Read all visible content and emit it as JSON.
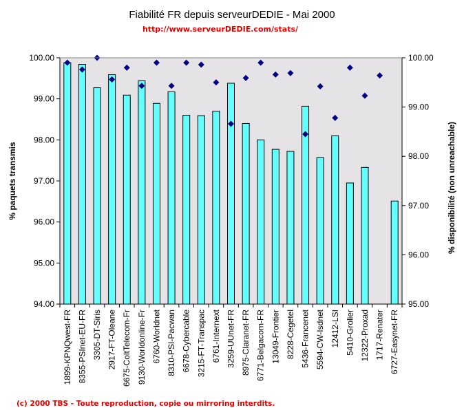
{
  "chart_data": {
    "type": "bar",
    "title": "Fiabilité FR depuis serveurDEDIE - Mai 2000",
    "subtitle": "http://www.serveurDEDIE.com/stats/",
    "footer": "(c) 2000 TBS - Toute reproduction, copie ou mirroring interdits.",
    "ylabel": "% paquets transmis",
    "y2label": "% disponibilité (non unreachable)",
    "ylim": [
      94,
      100
    ],
    "y2lim": [
      95,
      100
    ],
    "yticks": [
      "94.00",
      "95.00",
      "96.00",
      "97.00",
      "98.00",
      "99.00",
      "100.00"
    ],
    "y2ticks": [
      "95.00",
      "96.00",
      "97.00",
      "98.00",
      "99.00",
      "100.00"
    ],
    "grid": false,
    "legend": "none",
    "categories": [
      "1899-KPNQwest-FR",
      "8355-PSInet-EU-FR",
      "3305-DT-Siris",
      "2917-FT-Oleane",
      "6675-ColtTelecom-Fr",
      "9130-Worldonline-Fr",
      "6760-Worldnet",
      "8310-PSI-Pacwan",
      "6678-Cybercable",
      "3215-FT-Transpac",
      "6761-Internext",
      "3259-UUnet-FR",
      "8975-Claranet-FR",
      "6771-Belgacom-FR",
      "13049-Frontier",
      "8228-Cegetel",
      "5436-Francenet",
      "5594-CW-Isdnet",
      "12412-LSI",
      "5410-Grolier",
      "12322-Proxad",
      "1717-Renater",
      "6727-Easynet-FR"
    ],
    "series": [
      {
        "name": "% paquets transmis",
        "type": "bar",
        "axis": "left",
        "color": "#66ffff",
        "values": [
          99.88,
          99.84,
          99.27,
          99.59,
          99.09,
          99.44,
          98.89,
          99.17,
          98.6,
          98.59,
          98.7,
          99.38,
          98.4,
          98.0,
          97.77,
          97.72,
          98.82,
          97.57,
          98.1,
          96.95,
          97.33,
          null,
          96.51
        ]
      },
      {
        "name": "% disponibilité (non unreachable)",
        "type": "scatter",
        "marker": "diamond",
        "axis": "right",
        "color": "#000080",
        "values": [
          99.9,
          99.76,
          100.0,
          99.56,
          99.8,
          99.43,
          99.9,
          99.43,
          99.9,
          99.86,
          99.5,
          98.66,
          99.59,
          99.9,
          99.66,
          99.69,
          98.45,
          99.42,
          98.78,
          99.8,
          99.23,
          99.64,
          null
        ]
      }
    ]
  },
  "colors": {
    "plot_background": "#e6e3e6",
    "bar_fill": "#66ffff",
    "bar_stroke": "#000000",
    "marker": "#000080",
    "accent_red": "#e00000"
  }
}
